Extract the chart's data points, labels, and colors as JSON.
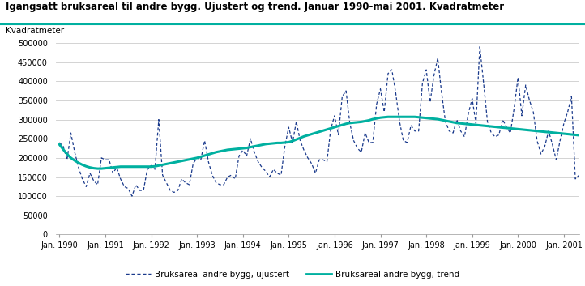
{
  "title": "Igangsatt bruksareal til andre bygg. Ujustert og trend. Januar 1990-mai 2001. Kvadratmeter",
  "ylabel": "Kvadratmeter",
  "ylim": [
    0,
    500000
  ],
  "yticks": [
    0,
    50000,
    100000,
    150000,
    200000,
    250000,
    300000,
    350000,
    400000,
    450000,
    500000
  ],
  "xtick_labels": [
    "Jan. 1990",
    "Jan. 1991",
    "Jan. 1992",
    "Jan. 1993",
    "Jan. 1994",
    "Jan. 1995",
    "Jan. 1996",
    "Jan. 1997",
    "Jan. 1998",
    "Jan. 1999",
    "Jan. 2000",
    "Jan. 2001"
  ],
  "legend_ujustert": "Bruksareal andre bygg, ujustert",
  "legend_trend": "Bruksareal andre bygg, trend",
  "ujustert_color": "#1a3a8c",
  "trend_color": "#00b0a0",
  "background_color": "#ffffff",
  "ujustert": [
    240000,
    230000,
    195000,
    265000,
    215000,
    175000,
    145000,
    125000,
    160000,
    140000,
    130000,
    200000,
    195000,
    195000,
    160000,
    175000,
    145000,
    125000,
    120000,
    100000,
    130000,
    115000,
    115000,
    170000,
    180000,
    170000,
    300000,
    155000,
    135000,
    115000,
    110000,
    115000,
    145000,
    135000,
    130000,
    185000,
    200000,
    195000,
    245000,
    190000,
    155000,
    135000,
    130000,
    130000,
    150000,
    155000,
    145000,
    205000,
    220000,
    205000,
    250000,
    215000,
    190000,
    175000,
    165000,
    150000,
    170000,
    160000,
    155000,
    230000,
    280000,
    240000,
    295000,
    245000,
    220000,
    200000,
    185000,
    160000,
    195000,
    195000,
    190000,
    275000,
    310000,
    260000,
    360000,
    375000,
    290000,
    245000,
    225000,
    215000,
    265000,
    240000,
    240000,
    340000,
    380000,
    320000,
    420000,
    430000,
    370000,
    295000,
    245000,
    240000,
    285000,
    270000,
    270000,
    395000,
    430000,
    345000,
    415000,
    460000,
    370000,
    295000,
    270000,
    265000,
    300000,
    270000,
    255000,
    315000,
    355000,
    290000,
    490000,
    395000,
    295000,
    265000,
    255000,
    260000,
    300000,
    280000,
    265000,
    330000,
    410000,
    310000,
    390000,
    350000,
    320000,
    245000,
    210000,
    230000,
    270000,
    235000,
    195000,
    245000,
    290000,
    320000,
    360000,
    145000,
    155000
  ],
  "trend": [
    235000,
    222000,
    210000,
    200000,
    193000,
    187000,
    182000,
    178000,
    175000,
    173000,
    172000,
    172000,
    173000,
    174000,
    175000,
    176000,
    177000,
    177000,
    177000,
    177000,
    177000,
    177000,
    177000,
    177000,
    177000,
    178000,
    180000,
    182000,
    184000,
    186000,
    188000,
    190000,
    192000,
    194000,
    196000,
    198000,
    200000,
    203000,
    206000,
    209000,
    212000,
    215000,
    217000,
    219000,
    221000,
    222000,
    223000,
    224000,
    225000,
    226000,
    228000,
    230000,
    232000,
    234000,
    236000,
    237000,
    238000,
    239000,
    239000,
    240000,
    241000,
    244000,
    248000,
    252000,
    256000,
    259000,
    262000,
    265000,
    268000,
    271000,
    274000,
    277000,
    280000,
    283000,
    286000,
    289000,
    291000,
    292000,
    293000,
    294000,
    296000,
    298000,
    301000,
    303000,
    305000,
    306000,
    307000,
    307000,
    307000,
    307000,
    307000,
    307000,
    307000,
    307000,
    306000,
    305000,
    304000,
    303000,
    302000,
    301000,
    299000,
    297000,
    295000,
    293000,
    291000,
    290000,
    289000,
    288000,
    287000,
    286000,
    285000,
    284000,
    283000,
    282000,
    281000,
    280000,
    279000,
    278000,
    277000,
    276000,
    275000,
    274000,
    273000,
    272000,
    271000,
    270000,
    269000,
    268000,
    267000,
    266000,
    265000,
    264000,
    263000,
    262000,
    261000,
    260000,
    259000
  ]
}
